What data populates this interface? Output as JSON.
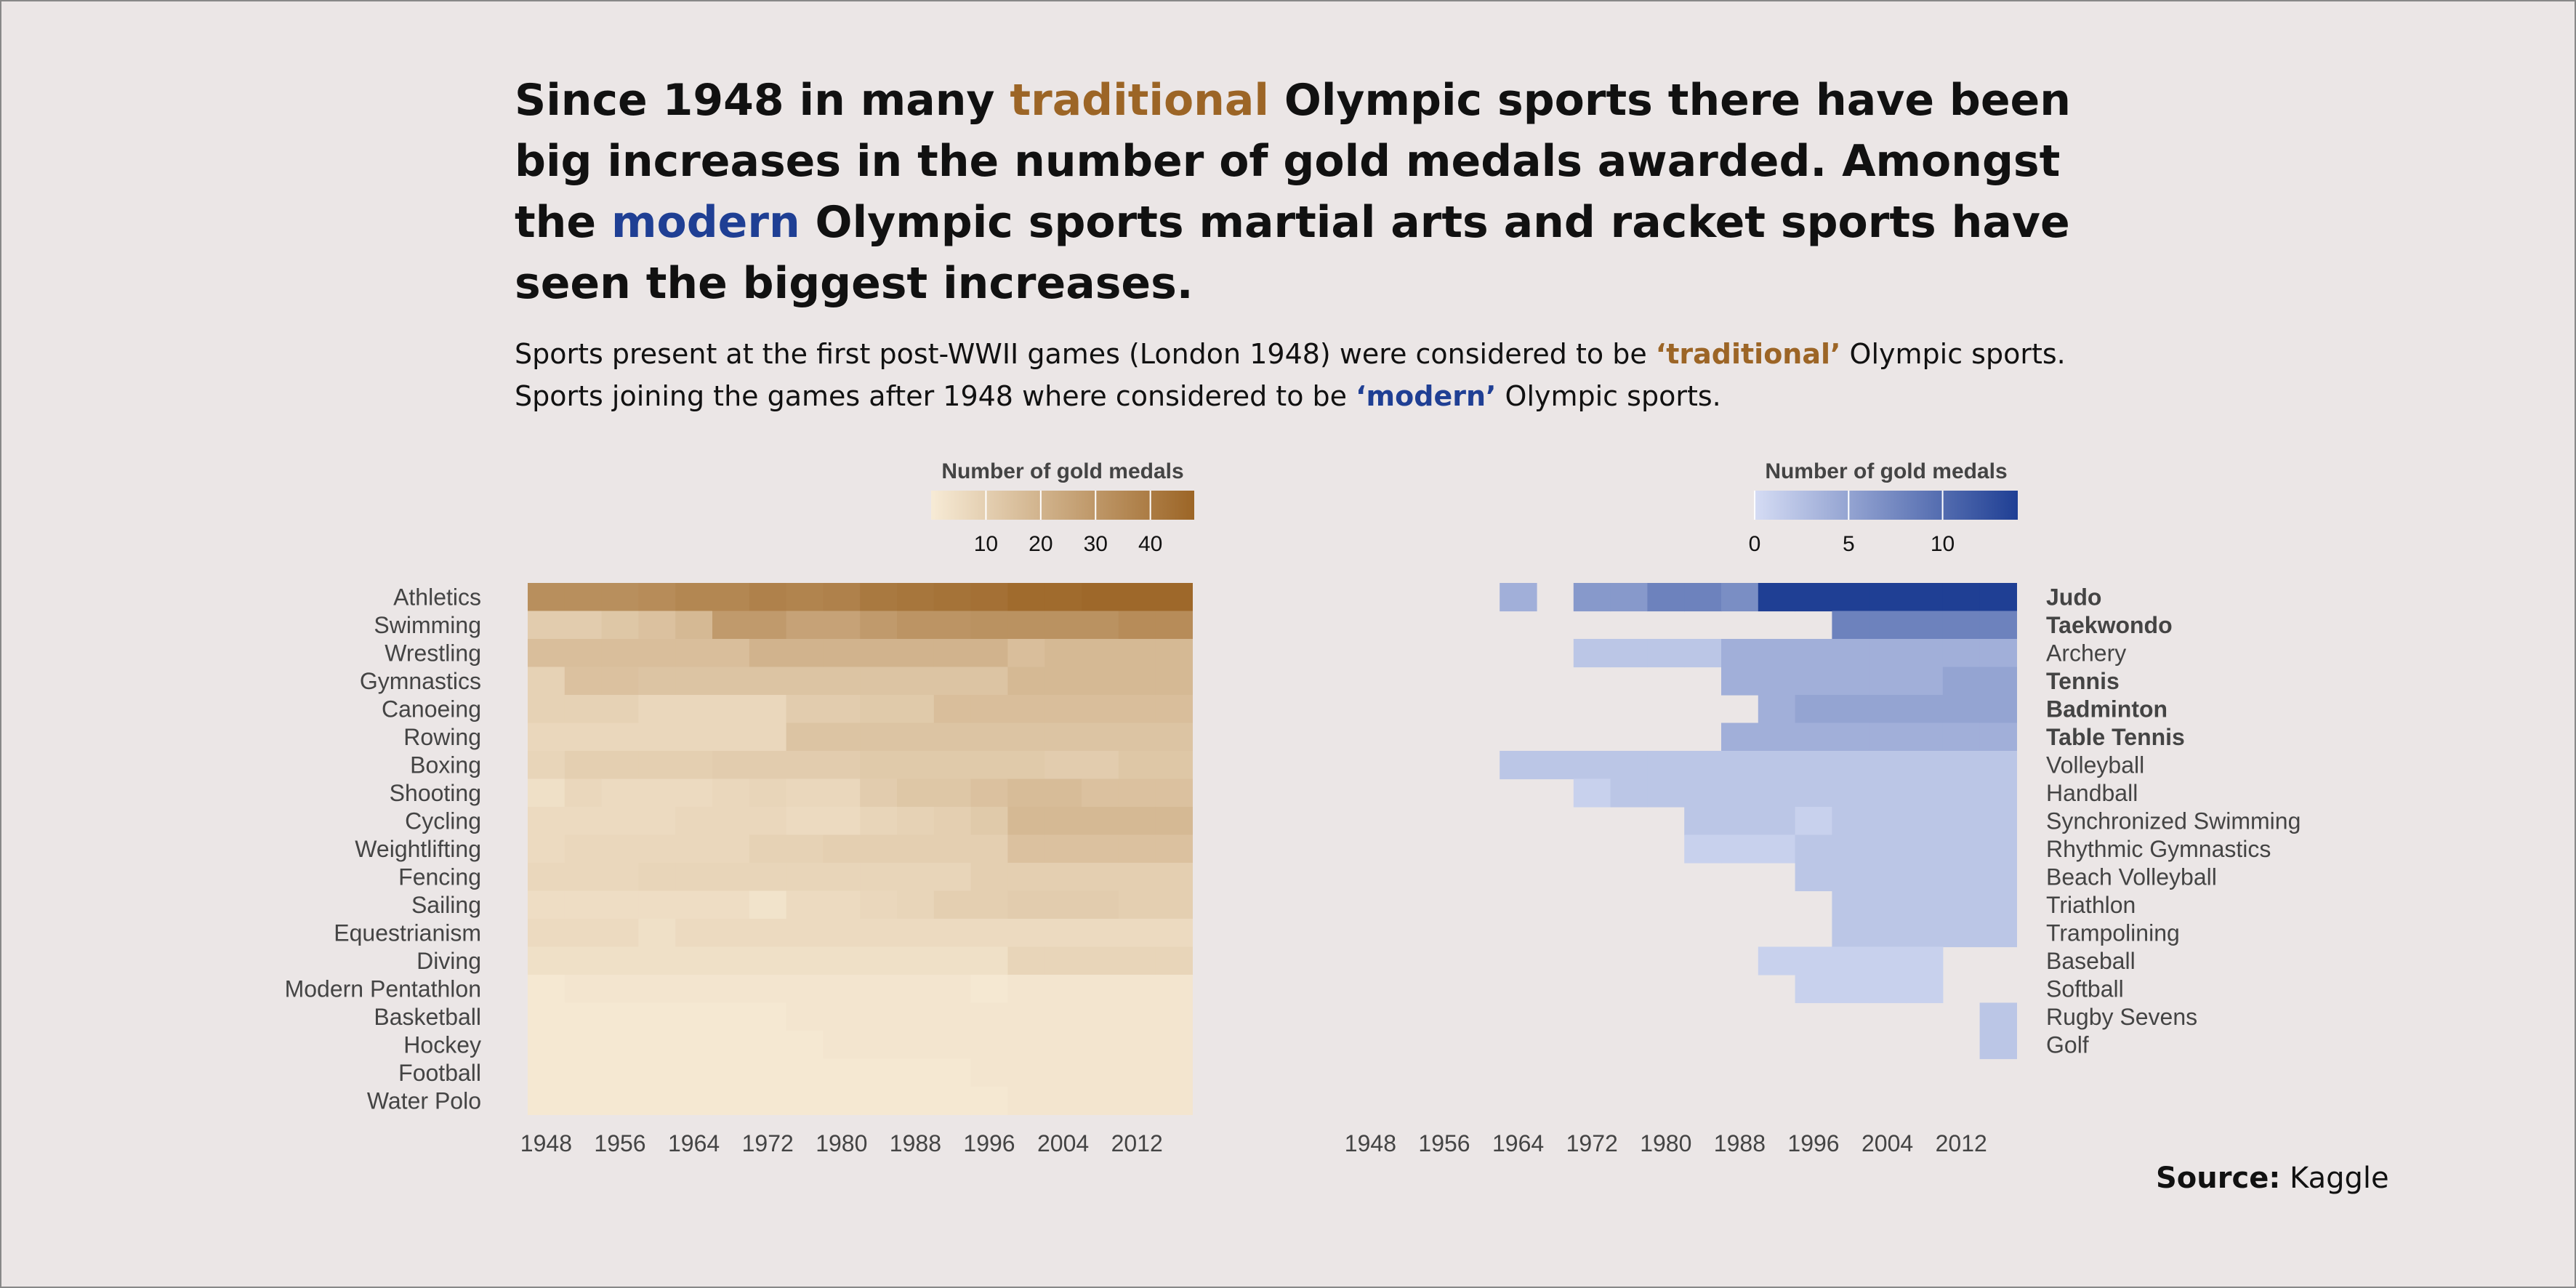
{
  "title": {
    "part1": "Since 1948 in many ",
    "traditional_word": "traditional",
    "part2": " Olympic sports there have been big increases in the number of gold medals awarded. Amongst the ",
    "modern_word": "modern",
    "part3": " Olympic sports martial arts and racket sports have seen the biggest increases."
  },
  "subtitle": {
    "line1_part1": "Sports present at the first post-WWII games (London 1948) were considered to be ",
    "line1_trad": "‘traditional’",
    "line1_part2": " Olympic sports.",
    "line2_part1": "Sports joining the games after 1948 where considered to be ",
    "line2_mod": "‘modern’",
    "line2_part2": " Olympic sports."
  },
  "source": {
    "label": "Source:",
    "value": "Kaggle"
  },
  "colors": {
    "traditional_low": "#f7ebd6",
    "traditional_high": "#9c6526",
    "modern_low": "#d5dcf4",
    "modern_high": "#1f3f94",
    "background": "#ebe6e6"
  },
  "chart_data": [
    {
      "type": "heatmap",
      "legend_title": "Number of gold medals",
      "legend_ticks": [
        10,
        20,
        30,
        40
      ],
      "value_range": [
        0,
        48
      ],
      "years": [
        1948,
        1952,
        1956,
        1960,
        1964,
        1968,
        1972,
        1976,
        1980,
        1984,
        1988,
        1992,
        1996,
        2000,
        2004,
        2008,
        2012,
        2016
      ],
      "x_tick_labels": [
        "1948",
        "1956",
        "1964",
        "1972",
        "1980",
        "1988",
        "1996",
        "2004",
        "2012"
      ],
      "rows": [
        {
          "sport": "Athletics",
          "values": [
            33,
            33,
            33,
            34,
            36,
            36,
            38,
            37,
            38,
            41,
            42,
            43,
            44,
            46,
            46,
            47,
            47,
            47
          ]
        },
        {
          "sport": "Swimming",
          "values": [
            11,
            11,
            13,
            15,
            18,
            29,
            29,
            26,
            26,
            29,
            31,
            31,
            32,
            32,
            32,
            32,
            34,
            34
          ]
        },
        {
          "sport": "Wrestling",
          "values": [
            16,
            16,
            16,
            16,
            16,
            16,
            20,
            20,
            20,
            20,
            20,
            20,
            20,
            16,
            18,
            18,
            18,
            18
          ]
        },
        {
          "sport": "Gymnastics",
          "values": [
            9,
            15,
            15,
            14,
            14,
            14,
            14,
            14,
            14,
            14,
            14,
            14,
            14,
            18,
            18,
            18,
            18,
            18
          ]
        },
        {
          "sport": "Canoeing",
          "values": [
            9,
            9,
            9,
            7,
            7,
            7,
            7,
            11,
            11,
            12,
            12,
            16,
            16,
            16,
            16,
            16,
            16,
            16
          ]
        },
        {
          "sport": "Rowing",
          "values": [
            7,
            7,
            7,
            7,
            7,
            7,
            7,
            14,
            14,
            14,
            14,
            14,
            14,
            14,
            14,
            14,
            14,
            14
          ]
        },
        {
          "sport": "Boxing",
          "values": [
            8,
            10,
            10,
            10,
            10,
            11,
            11,
            11,
            11,
            12,
            12,
            12,
            12,
            12,
            11,
            11,
            13,
            13
          ]
        },
        {
          "sport": "Shooting",
          "values": [
            4,
            7,
            6,
            6,
            6,
            7,
            8,
            7,
            7,
            11,
            13,
            13,
            15,
            17,
            17,
            15,
            15,
            15
          ]
        },
        {
          "sport": "Cycling",
          "values": [
            6,
            6,
            6,
            6,
            7,
            7,
            7,
            6,
            6,
            8,
            9,
            10,
            12,
            18,
            18,
            18,
            18,
            18
          ]
        },
        {
          "sport": "Weightlifting",
          "values": [
            6,
            7,
            7,
            7,
            7,
            7,
            9,
            9,
            10,
            10,
            10,
            10,
            10,
            15,
            15,
            15,
            15,
            15
          ]
        },
        {
          "sport": "Fencing",
          "values": [
            7,
            7,
            7,
            8,
            8,
            8,
            8,
            8,
            8,
            8,
            8,
            8,
            10,
            10,
            10,
            10,
            10,
            10
          ]
        },
        {
          "sport": "Sailing",
          "values": [
            5,
            5,
            5,
            5,
            5,
            5,
            3,
            6,
            6,
            7,
            8,
            10,
            10,
            11,
            11,
            11,
            10,
            10
          ]
        },
        {
          "sport": "Equestrianism",
          "values": [
            6,
            6,
            6,
            4,
            6,
            6,
            6,
            6,
            6,
            6,
            6,
            6,
            6,
            6,
            6,
            6,
            6,
            6
          ]
        },
        {
          "sport": "Diving",
          "values": [
            4,
            4,
            4,
            4,
            4,
            4,
            4,
            4,
            4,
            4,
            4,
            4,
            4,
            8,
            8,
            8,
            8,
            8
          ]
        },
        {
          "sport": "Modern Pentathlon",
          "values": [
            1,
            2,
            2,
            2,
            2,
            2,
            2,
            2,
            2,
            2,
            2,
            2,
            1,
            2,
            2,
            2,
            2,
            2
          ]
        },
        {
          "sport": "Basketball",
          "values": [
            1,
            1,
            1,
            1,
            1,
            1,
            1,
            2,
            2,
            2,
            2,
            2,
            2,
            2,
            2,
            2,
            2,
            2
          ]
        },
        {
          "sport": "Hockey",
          "values": [
            1,
            1,
            1,
            1,
            1,
            1,
            1,
            1,
            2,
            2,
            2,
            2,
            2,
            2,
            2,
            2,
            2,
            2
          ]
        },
        {
          "sport": "Football",
          "values": [
            1,
            1,
            1,
            1,
            1,
            1,
            1,
            1,
            1,
            1,
            1,
            1,
            2,
            2,
            2,
            2,
            2,
            2
          ]
        },
        {
          "sport": "Water Polo",
          "values": [
            1,
            1,
            1,
            1,
            1,
            1,
            1,
            1,
            1,
            1,
            1,
            1,
            1,
            2,
            2,
            2,
            2,
            2
          ]
        }
      ]
    },
    {
      "type": "heatmap",
      "legend_title": "Number of gold medals",
      "legend_ticks": [
        0,
        5,
        10
      ],
      "value_range": [
        0,
        14
      ],
      "years": [
        1948,
        1952,
        1956,
        1960,
        1964,
        1968,
        1972,
        1976,
        1980,
        1984,
        1988,
        1992,
        1996,
        2000,
        2004,
        2008,
        2012,
        2016
      ],
      "x_tick_labels": [
        "1948",
        "1956",
        "1964",
        "1972",
        "1980",
        "1988",
        "1996",
        "2004",
        "2012"
      ],
      "rows": [
        {
          "sport": "Judo",
          "bold": true,
          "values": [
            null,
            null,
            null,
            null,
            4,
            null,
            6,
            6,
            8,
            8,
            7,
            14,
            14,
            14,
            14,
            14,
            14,
            14
          ]
        },
        {
          "sport": "Taekwondo",
          "bold": true,
          "values": [
            null,
            null,
            null,
            null,
            null,
            null,
            null,
            null,
            null,
            null,
            null,
            null,
            null,
            8,
            8,
            8,
            8,
            8
          ]
        },
        {
          "sport": "Archery",
          "bold": false,
          "values": [
            null,
            null,
            null,
            null,
            null,
            null,
            2,
            2,
            2,
            2,
            4,
            4,
            4,
            4,
            4,
            4,
            4,
            4
          ]
        },
        {
          "sport": "Tennis",
          "bold": true,
          "values": [
            null,
            null,
            null,
            null,
            null,
            null,
            null,
            null,
            null,
            null,
            4,
            4,
            4,
            4,
            4,
            4,
            5,
            5
          ]
        },
        {
          "sport": "Badminton",
          "bold": true,
          "values": [
            null,
            null,
            null,
            null,
            null,
            null,
            null,
            null,
            null,
            null,
            null,
            4,
            5,
            5,
            5,
            5,
            5,
            5
          ]
        },
        {
          "sport": "Table Tennis",
          "bold": true,
          "values": [
            null,
            null,
            null,
            null,
            null,
            null,
            null,
            null,
            null,
            null,
            4,
            4,
            4,
            4,
            4,
            4,
            4,
            4
          ]
        },
        {
          "sport": "Volleyball",
          "bold": false,
          "values": [
            null,
            null,
            null,
            null,
            2,
            2,
            2,
            2,
            2,
            2,
            2,
            2,
            2,
            2,
            2,
            2,
            2,
            2
          ]
        },
        {
          "sport": "Handball",
          "bold": false,
          "values": [
            null,
            null,
            null,
            null,
            null,
            null,
            1,
            2,
            2,
            2,
            2,
            2,
            2,
            2,
            2,
            2,
            2,
            2
          ]
        },
        {
          "sport": "Synchronized Swimming",
          "bold": false,
          "values": [
            null,
            null,
            null,
            null,
            null,
            null,
            null,
            null,
            null,
            2,
            2,
            2,
            1,
            2,
            2,
            2,
            2,
            2
          ]
        },
        {
          "sport": "Rhythmic Gymnastics",
          "bold": false,
          "values": [
            null,
            null,
            null,
            null,
            null,
            null,
            null,
            null,
            null,
            1,
            1,
            1,
            2,
            2,
            2,
            2,
            2,
            2
          ]
        },
        {
          "sport": "Beach Volleyball",
          "bold": false,
          "values": [
            null,
            null,
            null,
            null,
            null,
            null,
            null,
            null,
            null,
            null,
            null,
            null,
            2,
            2,
            2,
            2,
            2,
            2
          ]
        },
        {
          "sport": "Triathlon",
          "bold": false,
          "values": [
            null,
            null,
            null,
            null,
            null,
            null,
            null,
            null,
            null,
            null,
            null,
            null,
            null,
            2,
            2,
            2,
            2,
            2
          ]
        },
        {
          "sport": "Trampolining",
          "bold": false,
          "values": [
            null,
            null,
            null,
            null,
            null,
            null,
            null,
            null,
            null,
            null,
            null,
            null,
            null,
            2,
            2,
            2,
            2,
            2
          ]
        },
        {
          "sport": "Baseball",
          "bold": false,
          "values": [
            null,
            null,
            null,
            null,
            null,
            null,
            null,
            null,
            null,
            null,
            null,
            1,
            1,
            1,
            1,
            1,
            null,
            null
          ]
        },
        {
          "sport": "Softball",
          "bold": false,
          "values": [
            null,
            null,
            null,
            null,
            null,
            null,
            null,
            null,
            null,
            null,
            null,
            null,
            1,
            1,
            1,
            1,
            null,
            null
          ]
        },
        {
          "sport": "Rugby Sevens",
          "bold": false,
          "values": [
            null,
            null,
            null,
            null,
            null,
            null,
            null,
            null,
            null,
            null,
            null,
            null,
            null,
            null,
            null,
            null,
            null,
            2
          ]
        },
        {
          "sport": "Golf",
          "bold": false,
          "values": [
            null,
            null,
            null,
            null,
            null,
            null,
            null,
            null,
            null,
            null,
            null,
            null,
            null,
            null,
            null,
            null,
            null,
            2
          ]
        }
      ]
    }
  ]
}
